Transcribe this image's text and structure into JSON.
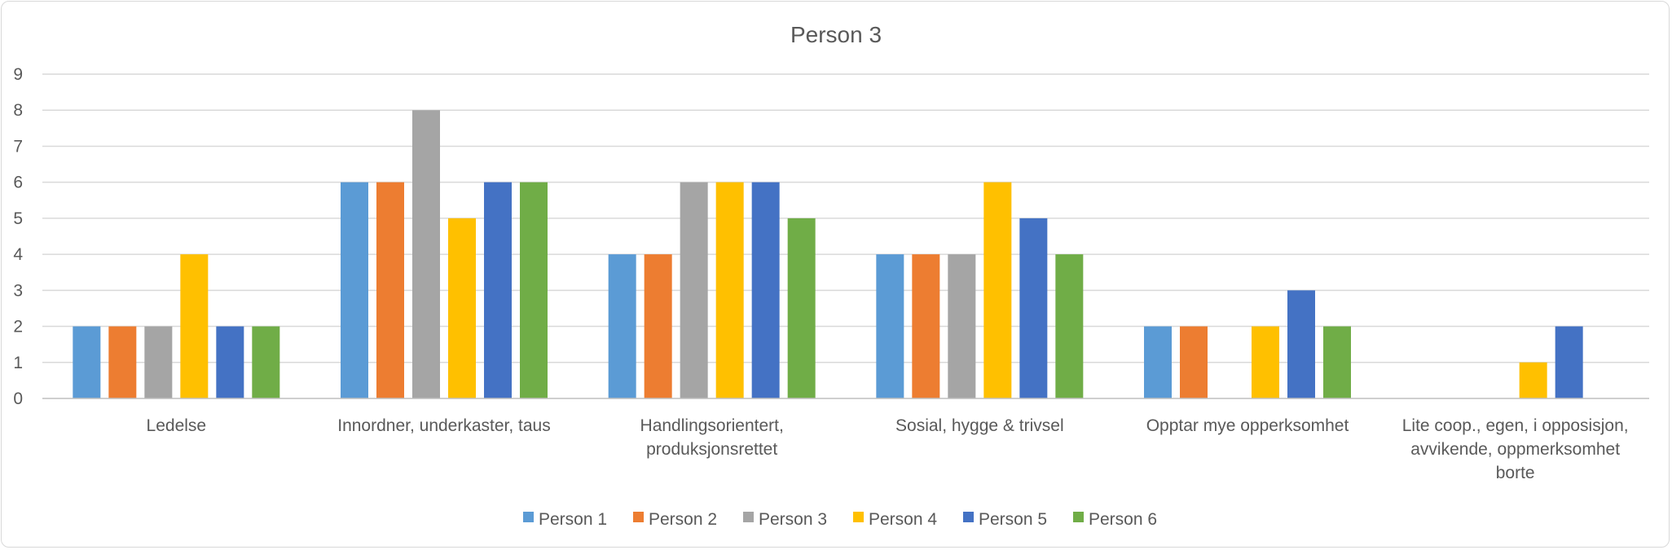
{
  "chart_data": {
    "type": "bar",
    "title": "Person 3",
    "xlabel": "",
    "ylabel": "",
    "ylim": [
      0,
      9
    ],
    "yticks": [
      0,
      1,
      2,
      3,
      4,
      5,
      6,
      7,
      8,
      9
    ],
    "grid": true,
    "legend_position": "bottom",
    "categories": [
      [
        "Ledelse"
      ],
      [
        "Innordner, underkaster, taus"
      ],
      [
        "Handlingsorientert,",
        "produksjonsrettet"
      ],
      [
        "Sosial, hygge & trivsel"
      ],
      [
        "Opptar mye opperksomhet"
      ],
      [
        "Lite coop., egen, i opposisjon,",
        "avvikende, oppmerksomhet",
        "borte"
      ]
    ],
    "series": [
      {
        "name": "Person 1",
        "color": "#5B9BD5",
        "values": [
          2,
          6,
          4,
          4,
          2,
          0
        ]
      },
      {
        "name": "Person 2",
        "color": "#ED7D31",
        "values": [
          2,
          6,
          4,
          4,
          2,
          0
        ]
      },
      {
        "name": "Person 3",
        "color": "#A5A5A5",
        "values": [
          2,
          8,
          6,
          4,
          0,
          0
        ]
      },
      {
        "name": "Person 4",
        "color": "#FFC000",
        "values": [
          4,
          5,
          6,
          6,
          2,
          1
        ]
      },
      {
        "name": "Person 5",
        "color": "#4472C4",
        "values": [
          2,
          6,
          6,
          5,
          3,
          2
        ]
      },
      {
        "name": "Person 6",
        "color": "#70AD47",
        "values": [
          2,
          6,
          5,
          4,
          2,
          0
        ]
      }
    ]
  }
}
